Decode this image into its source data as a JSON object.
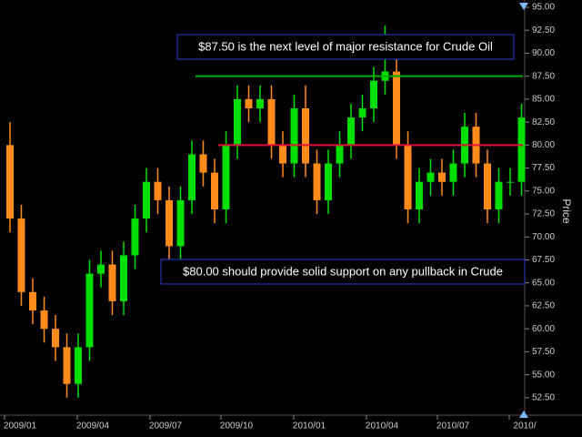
{
  "chart_data": {
    "type": "candlestick",
    "series": [
      {
        "name": "Crude Oil",
        "up_color": "#00e000",
        "down_color": "#ff8c1a",
        "open": [
          80,
          72,
          64,
          62,
          60,
          58,
          54,
          58,
          66,
          67,
          63,
          68,
          72,
          76,
          74,
          69,
          74,
          79,
          77,
          73,
          80,
          85,
          84,
          85,
          80,
          78,
          84,
          78,
          74,
          78,
          80,
          83,
          84,
          87,
          88,
          80,
          73,
          76,
          77,
          76,
          78,
          82,
          78,
          73,
          76,
          76
        ],
        "high": [
          82.5,
          73.5,
          65.5,
          63.5,
          61.5,
          59.5,
          59.5,
          67.5,
          68.5,
          68.5,
          69.5,
          73.5,
          77.5,
          77.5,
          75.5,
          75.5,
          80.5,
          80.5,
          78.5,
          81.5,
          86.5,
          86.5,
          86.5,
          86.5,
          81.5,
          85.5,
          86.5,
          79.5,
          79.5,
          81.5,
          84.5,
          85.5,
          88.5,
          93,
          89.5,
          81.5,
          77.5,
          78.5,
          78.5,
          79.5,
          83.5,
          83.5,
          79.5,
          77.5,
          77.5,
          84.5
        ],
        "low": [
          70.5,
          62.5,
          60.5,
          58.5,
          56.5,
          52.5,
          52.5,
          56.5,
          64.5,
          61.5,
          61.5,
          66.5,
          70.5,
          72.5,
          67.5,
          67.5,
          72.5,
          75.5,
          71.5,
          71.5,
          78.5,
          82.5,
          82.5,
          78.5,
          76.5,
          76.5,
          76.5,
          72.5,
          72.5,
          76.5,
          78.5,
          81.5,
          82.5,
          85.5,
          78.5,
          71.5,
          71.5,
          74.5,
          74.5,
          74.5,
          76.5,
          76.5,
          71.5,
          71.5,
          74.5,
          74.5
        ],
        "close": [
          72,
          64,
          62,
          60,
          58,
          54,
          58,
          66,
          67,
          63,
          68,
          72,
          76,
          74,
          69,
          74,
          79,
          77,
          73,
          80,
          85,
          84,
          85,
          80,
          78,
          84,
          78,
          74,
          78,
          80,
          83,
          84,
          87,
          88,
          80,
          73,
          76,
          77,
          76,
          78,
          82,
          78,
          73,
          76,
          76,
          83
        ]
      }
    ],
    "xlim": [
      -0.88,
      45.12
    ],
    "xticks": [
      {
        "value": -0.48,
        "label": "2009/01"
      },
      {
        "value": 5.92,
        "label": "2009/04"
      },
      {
        "value": 12.32,
        "label": "2009/07"
      },
      {
        "value": 18.56,
        "label": "2009/10"
      },
      {
        "value": 24.96,
        "label": "2010/01"
      },
      {
        "value": 31.36,
        "label": "2010/04"
      },
      {
        "value": 37.6,
        "label": "2010/07"
      },
      {
        "value": 43.92,
        "label": "2010/"
      }
    ],
    "ylim": [
      50.7,
      95
    ],
    "yticks": [
      {
        "value": 95,
        "label": "95.00"
      },
      {
        "value": 92.5,
        "label": "92.50"
      },
      {
        "value": 90,
        "label": "90.00"
      },
      {
        "value": 87.5,
        "label": "87.50"
      },
      {
        "value": 85,
        "label": "85.00"
      },
      {
        "value": 82.5,
        "label": "82.50"
      },
      {
        "value": 80,
        "label": "80.00"
      },
      {
        "value": 77.5,
        "label": "77.50"
      },
      {
        "value": 75,
        "label": "75.00"
      },
      {
        "value": 72.5,
        "label": "72.50"
      },
      {
        "value": 70,
        "label": "70.00"
      },
      {
        "value": 67.5,
        "label": "67.50"
      },
      {
        "value": 65,
        "label": "65.00"
      },
      {
        "value": 62.5,
        "label": "62.50"
      },
      {
        "value": 60,
        "label": "60.00"
      },
      {
        "value": 57.5,
        "label": "57.50"
      },
      {
        "value": 55,
        "label": "55.00"
      },
      {
        "value": 52.5,
        "label": "52.50"
      }
    ],
    "ylabel": "Price",
    "levels": [
      {
        "value": 87.5,
        "color": "#00b000",
        "text": "$87.50 is the next level of major resistance for Crude Oil"
      },
      {
        "value": 80,
        "color": "#e0103a",
        "text": "$80.00 should provide solid support on any pullback in Crude"
      }
    ]
  }
}
